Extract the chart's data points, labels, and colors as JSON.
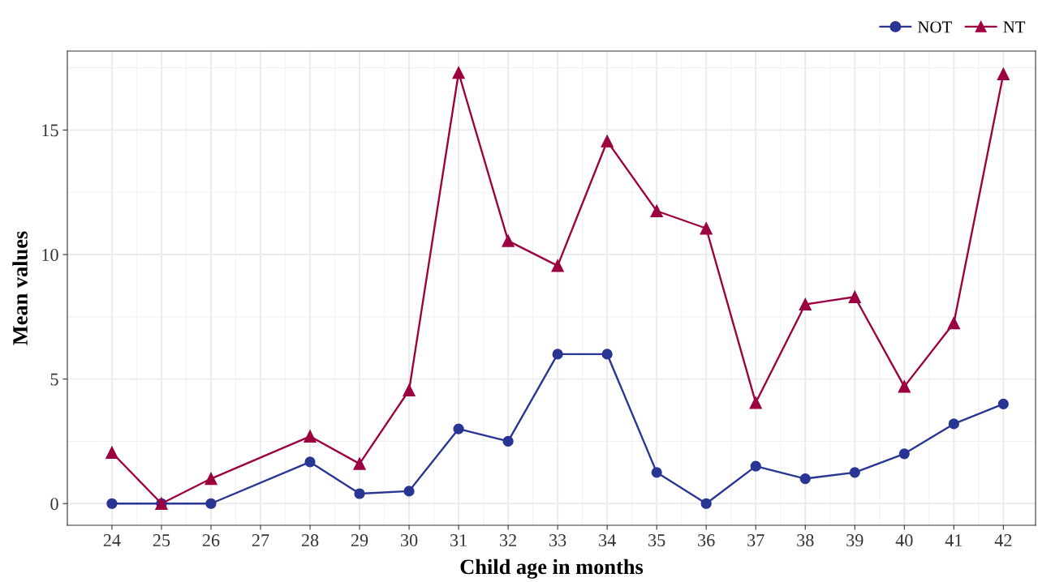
{
  "chart_data": {
    "type": "line",
    "xlabel": "Child age in months",
    "ylabel": "Mean values",
    "x": [
      24,
      25,
      26,
      28,
      29,
      30,
      31,
      32,
      33,
      34,
      35,
      36,
      37,
      38,
      39,
      40,
      41,
      42
    ],
    "series": [
      {
        "name": "NOT",
        "color": "#283593",
        "marker": "circle",
        "values": [
          0,
          0,
          0,
          1.67,
          0.4,
          0.5,
          3,
          2.5,
          6,
          6,
          1.25,
          0,
          1.5,
          1,
          1.25,
          2,
          3.2,
          4
        ]
      },
      {
        "name": "NT",
        "color": "#9c0040",
        "marker": "triangle",
        "values": [
          2.05,
          0,
          1,
          2.7,
          1.6,
          4.55,
          17.3,
          10.55,
          9.55,
          14.55,
          11.75,
          11.05,
          4.05,
          8,
          8.3,
          4.7,
          7.25,
          17.25
        ]
      }
    ],
    "xlim": [
      23.1,
      42.65
    ],
    "xticks": [
      24,
      25,
      26,
      27,
      28,
      29,
      30,
      31,
      32,
      33,
      34,
      35,
      36,
      37,
      38,
      39,
      40,
      41,
      42
    ],
    "ylim": [
      -0.87,
      18.17
    ],
    "yticks": [
      0,
      5,
      10,
      15
    ],
    "grid": true,
    "legend": "top right",
    "line_style": "solid"
  }
}
